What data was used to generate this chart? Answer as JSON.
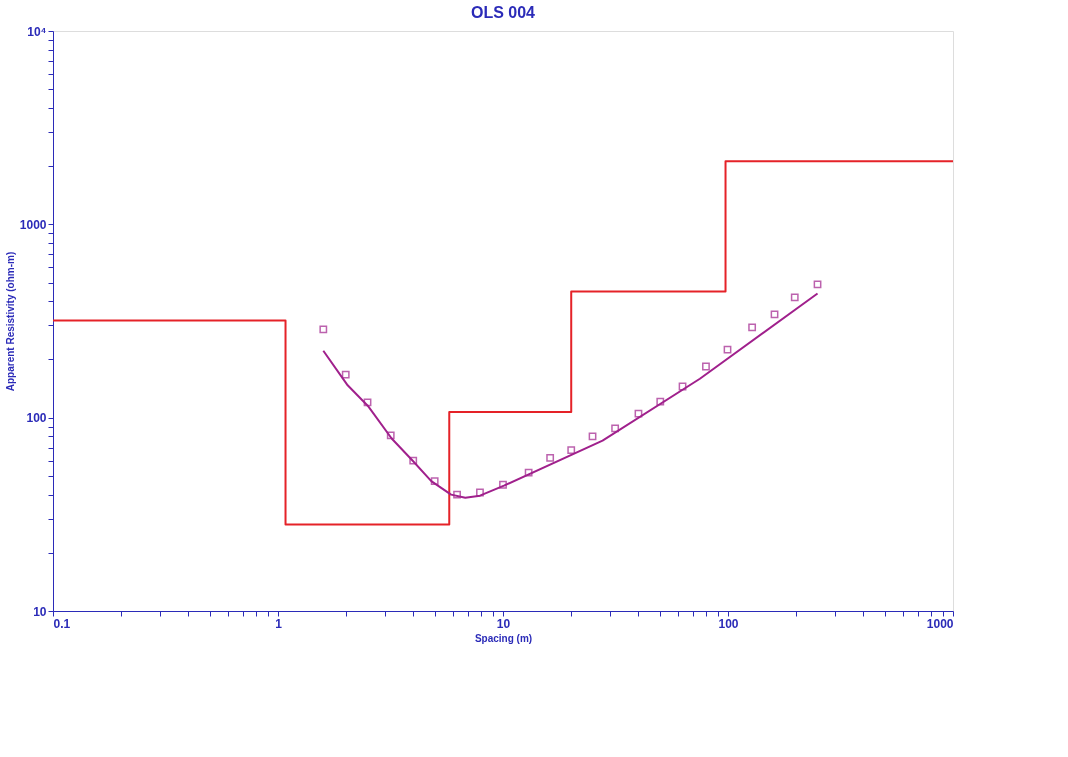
{
  "chart_data": {
    "type": "line",
    "title": "OLS 004",
    "xlabel": "Spacing (m)",
    "ylabel": "Apparent Resistivity (ohm-m)",
    "log": "xy",
    "grid": false,
    "xlim": [
      0.1,
      1000
    ],
    "ylim": [
      10,
      10000
    ],
    "xticks": [
      0.1,
      {
        "value": 0.2,
        "label": null
      },
      {
        "value": 0.3,
        "label": null
      },
      {
        "value": 0.4,
        "label": null
      },
      {
        "value": 0.5,
        "label": null
      },
      {
        "value": 0.6,
        "label": null
      },
      {
        "value": 0.7,
        "label": null
      },
      {
        "value": 0.8,
        "label": null
      },
      {
        "value": 0.9,
        "label": null
      },
      1,
      {
        "value": 2,
        "label": null
      },
      {
        "value": 3,
        "label": null
      },
      {
        "value": 4,
        "label": null
      },
      {
        "value": 5,
        "label": null
      },
      {
        "value": 6,
        "label": null
      },
      {
        "value": 7,
        "label": null
      },
      {
        "value": 8,
        "label": null
      },
      {
        "value": 9,
        "label": null
      },
      10,
      {
        "value": 20,
        "label": null
      },
      {
        "value": 30,
        "label": null
      },
      {
        "value": 40,
        "label": null
      },
      {
        "value": 50,
        "label": null
      },
      {
        "value": 60,
        "label": null
      },
      {
        "value": 70,
        "label": null
      },
      {
        "value": 80,
        "label": null
      },
      {
        "value": 90,
        "label": null
      },
      100,
      {
        "value": 200,
        "label": null
      },
      {
        "value": 300,
        "label": null
      },
      {
        "value": 400,
        "label": null
      },
      {
        "value": 500,
        "label": null
      },
      {
        "value": 600,
        "label": null
      },
      {
        "value": 700,
        "label": null
      },
      {
        "value": 800,
        "label": null
      },
      {
        "value": 900,
        "label": null
      },
      1000
    ],
    "yticks": [
      10,
      {
        "value": 20,
        "label": null
      },
      {
        "value": 30,
        "label": null
      },
      {
        "value": 40,
        "label": null
      },
      {
        "value": 50,
        "label": null
      },
      {
        "value": 60,
        "label": null
      },
      {
        "value": 70,
        "label": null
      },
      {
        "value": 80,
        "label": null
      },
      {
        "value": 90,
        "label": null
      },
      100,
      {
        "value": 200,
        "label": null
      },
      {
        "value": 300,
        "label": null
      },
      {
        "value": 400,
        "label": null
      },
      {
        "value": 500,
        "label": null
      },
      {
        "value": 600,
        "label": null
      },
      {
        "value": 700,
        "label": null
      },
      {
        "value": 800,
        "label": null
      },
      {
        "value": 900,
        "label": null
      },
      1000,
      {
        "value": 2000,
        "label": null
      },
      {
        "value": 3000,
        "label": null
      },
      {
        "value": 4000,
        "label": null
      },
      {
        "value": 5000,
        "label": null
      },
      {
        "value": 6000,
        "label": null
      },
      {
        "value": 7000,
        "label": null
      },
      {
        "value": 8000,
        "label": null
      },
      {
        "value": 9000,
        "label": null
      },
      {
        "value": 10000,
        "label": "10⁴"
      }
    ],
    "series": [
      {
        "color": "#e52228",
        "line_style": "solid",
        "x": [
          0.1,
          1.08,
          1.08,
          5.77,
          5.77,
          20.1,
          20.1,
          97.5,
          97.5,
          1000
        ],
        "values": [
          318,
          318,
          28,
          28,
          107,
          107,
          450,
          450,
          2120,
          2120
        ]
      },
      {
        "type": "scatter",
        "color": "#a0208c",
        "marker": "square",
        "x": [
          1.59,
          2.0,
          2.5,
          3.17,
          3.99,
          4.97,
          6.25,
          7.9,
          10,
          13,
          16.2,
          20.1,
          25,
          31.5,
          40,
          50,
          62.8,
          79.8,
          99.5,
          128,
          161,
          198,
          250
        ],
        "values": [
          286,
          167,
          120,
          81,
          60,
          47,
          40,
          41,
          45,
          52,
          62,
          68,
          80,
          88,
          105,
          121,
          145,
          184,
          225,
          293,
          342,
          419,
          489
        ]
      },
      {
        "color": "#a0208c",
        "line_style": "solid",
        "x": [
          1.59,
          2.04,
          2.51,
          3.2,
          3.96,
          4.8,
          5.88,
          6.8,
          7.9,
          10.1,
          27.7,
          75,
          250
        ],
        "values": [
          222,
          147,
          115,
          78,
          60,
          47,
          40,
          38.5,
          39.5,
          44.5,
          76,
          159,
          439
        ]
      }
    ]
  }
}
